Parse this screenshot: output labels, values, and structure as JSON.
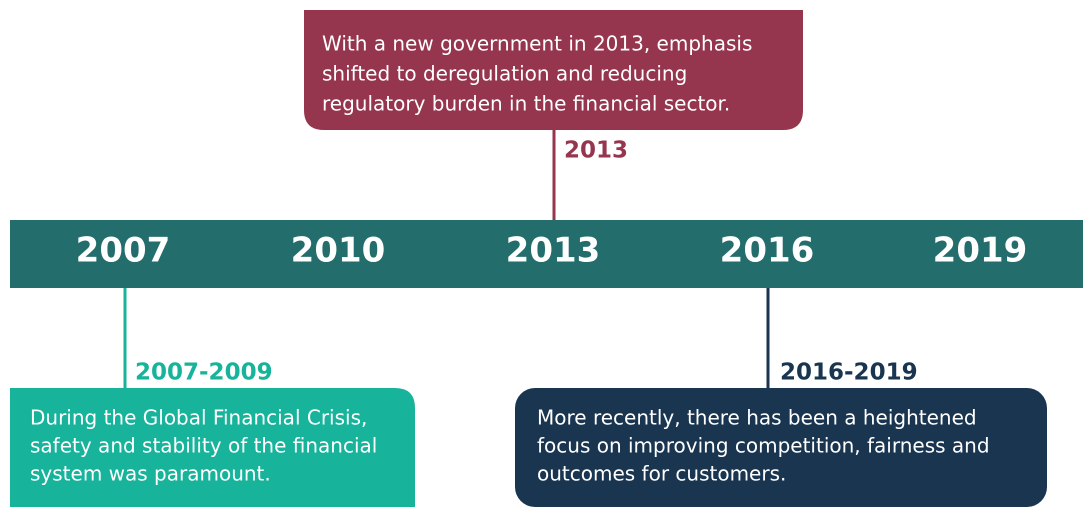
{
  "timeline": {
    "years": [
      "2007",
      "2010",
      "2013",
      "2016",
      "2019"
    ]
  },
  "events": [
    {
      "label": "2013",
      "lines": [
        "With a new government in 2013, emphasis",
        "shifted to deregulation and reducing",
        "regulatory burden in the financial sector."
      ]
    },
    {
      "label": "2007-2009",
      "lines": [
        "During the Global Financial Crisis,",
        "safety and stability of the financial",
        "system was paramount."
      ]
    },
    {
      "label": "2016-2019",
      "lines": [
        "More recently, there has been a heightened",
        "focus on improving competition, fairness and",
        "outcomes for customers."
      ]
    }
  ]
}
